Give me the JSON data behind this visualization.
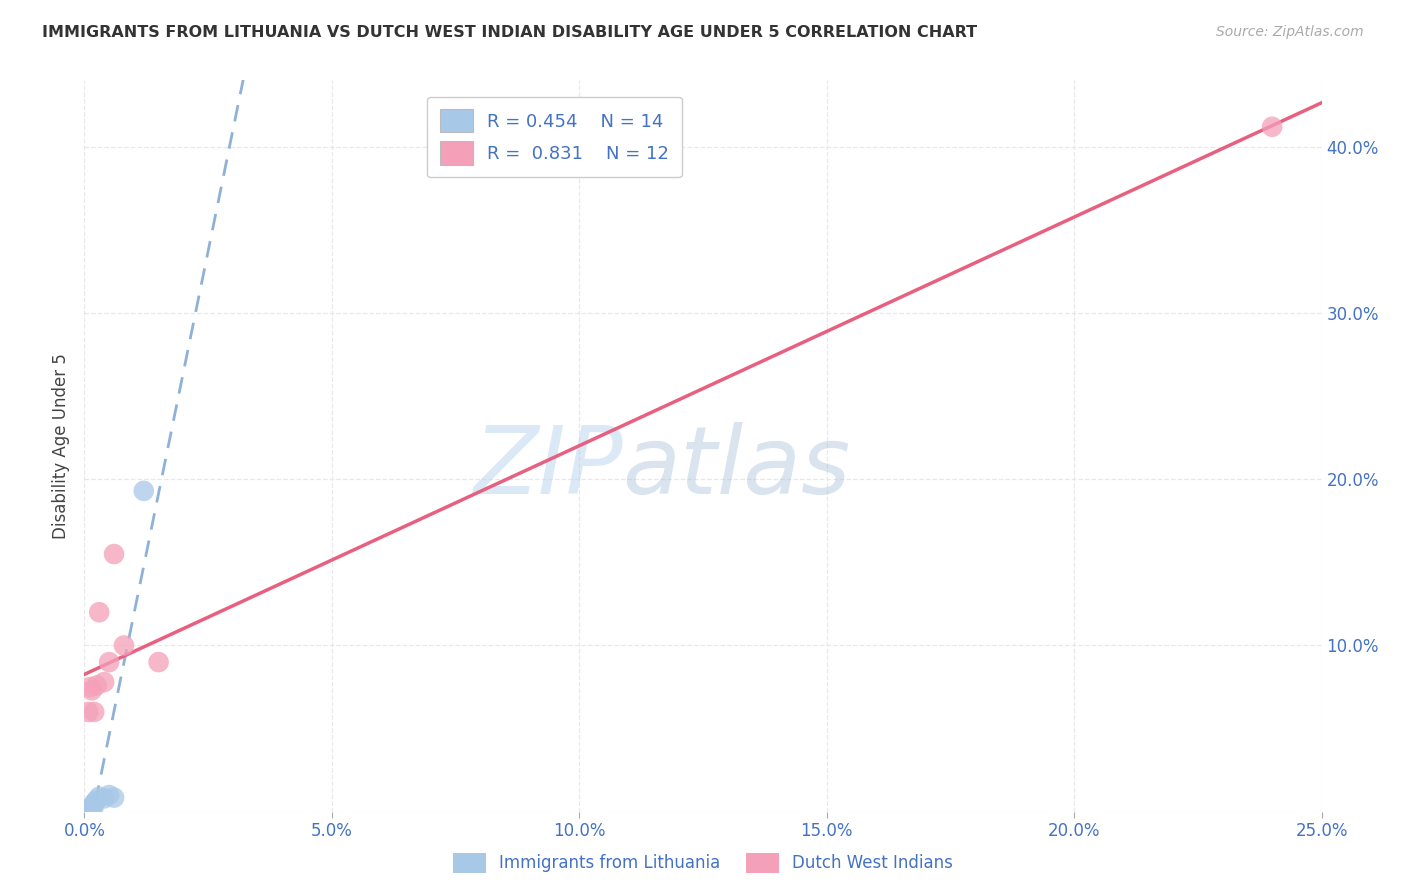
{
  "title": "IMMIGRANTS FROM LITHUANIA VS DUTCH WEST INDIAN DISABILITY AGE UNDER 5 CORRELATION CHART",
  "source": "Source: ZipAtlas.com",
  "ylabel": "Disability Age Under 5",
  "legend_label_1": "Immigrants from Lithuania",
  "legend_label_2": "Dutch West Indians",
  "r1": "0.454",
  "n1": "14",
  "r2": "0.831",
  "n2": "12",
  "xlim": [
    0.0,
    0.25
  ],
  "ylim": [
    0.0,
    0.44
  ],
  "xticks": [
    0.0,
    0.05,
    0.1,
    0.15,
    0.2,
    0.25
  ],
  "yticks": [
    0.0,
    0.1,
    0.2,
    0.3,
    0.4
  ],
  "xtick_labels": [
    "0.0%",
    "5.0%",
    "10.0%",
    "15.0%",
    "20.0%",
    "25.0%"
  ],
  "ytick_labels": [
    "",
    "10.0%",
    "20.0%",
    "30.0%",
    "40.0%"
  ],
  "blue_x": [
    0.0005,
    0.0008,
    0.001,
    0.0012,
    0.0015,
    0.0018,
    0.002,
    0.0022,
    0.0025,
    0.003,
    0.004,
    0.005,
    0.012,
    0.006
  ],
  "blue_y": [
    0.001,
    0.0015,
    0.002,
    0.0025,
    0.003,
    0.002,
    0.005,
    0.006,
    0.007,
    0.009,
    0.008,
    0.01,
    0.193,
    0.0085
  ],
  "pink_x": [
    0.0008,
    0.0012,
    0.0015,
    0.002,
    0.0025,
    0.003,
    0.004,
    0.005,
    0.006,
    0.008,
    0.015,
    0.24
  ],
  "pink_y": [
    0.06,
    0.075,
    0.073,
    0.06,
    0.076,
    0.12,
    0.078,
    0.09,
    0.155,
    0.1,
    0.09,
    0.412
  ],
  "blue_color": "#a8c8e8",
  "pink_color": "#f4a0b8",
  "blue_line_color": "#6090c8",
  "pink_line_color": "#e86080",
  "watermark_zip": "ZIP",
  "watermark_atlas": "atlas",
  "background_color": "#ffffff",
  "grid_color": "#e8e8e8"
}
